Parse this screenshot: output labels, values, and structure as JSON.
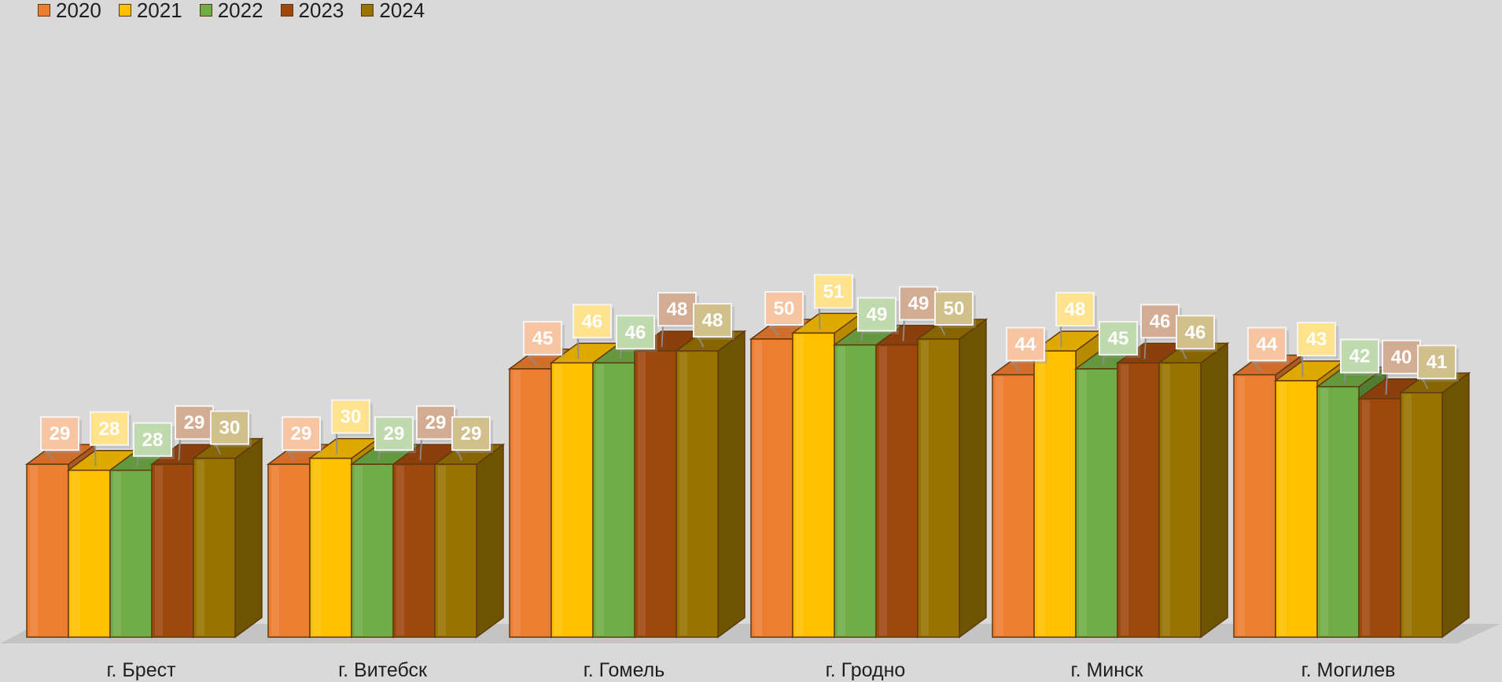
{
  "chart_data": {
    "type": "bar",
    "style": "3d-clustered-column",
    "categories": [
      "г. Брест",
      "г. Витебск",
      "г. Гомель",
      "г. Гродно",
      "г. Минск",
      "г. Могилев"
    ],
    "series": [
      {
        "name": "2020",
        "color": "#ed7d31",
        "values": [
          29,
          29,
          45,
          50,
          44,
          44
        ]
      },
      {
        "name": "2021",
        "color": "#ffc000",
        "values": [
          28,
          30,
          46,
          51,
          48,
          43
        ]
      },
      {
        "name": "2022",
        "color": "#70ad47",
        "values": [
          28,
          29,
          46,
          49,
          45,
          42
        ]
      },
      {
        "name": "2023",
        "color": "#9e480e",
        "values": [
          29,
          29,
          48,
          49,
          46,
          40
        ]
      },
      {
        "name": "2024",
        "color": "#997300",
        "values": [
          30,
          29,
          48,
          50,
          46,
          41
        ]
      }
    ],
    "ylim": [
      0,
      51
    ],
    "legend_position": "top-left",
    "data_labels": true,
    "grid": false
  }
}
